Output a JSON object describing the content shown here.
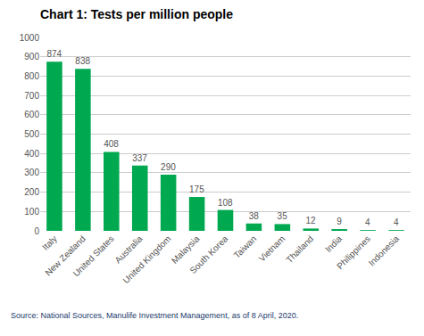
{
  "chart_data": {
    "type": "bar",
    "title": "Chart 1: Tests per million people",
    "categories": [
      "Italy",
      "New Zealand",
      "United States",
      "Australia",
      "United Kingdom",
      "Malaysia",
      "South Korea",
      "Taiwan",
      "Vietnam",
      "Thailand",
      "India",
      "Philippines",
      "Indonesia"
    ],
    "values": [
      874,
      838,
      408,
      337,
      290,
      175,
      108,
      38,
      35,
      12,
      9,
      4,
      4
    ],
    "color": "#00a850",
    "ylim": [
      0,
      1000
    ],
    "yticks": [
      0,
      100,
      200,
      300,
      400,
      500,
      600,
      700,
      800,
      900,
      1000
    ],
    "grid": true,
    "data_labels": true,
    "annotations": [
      "Source: National Sources, Manulife Investment Management, as of 8 April, 2020."
    ]
  }
}
